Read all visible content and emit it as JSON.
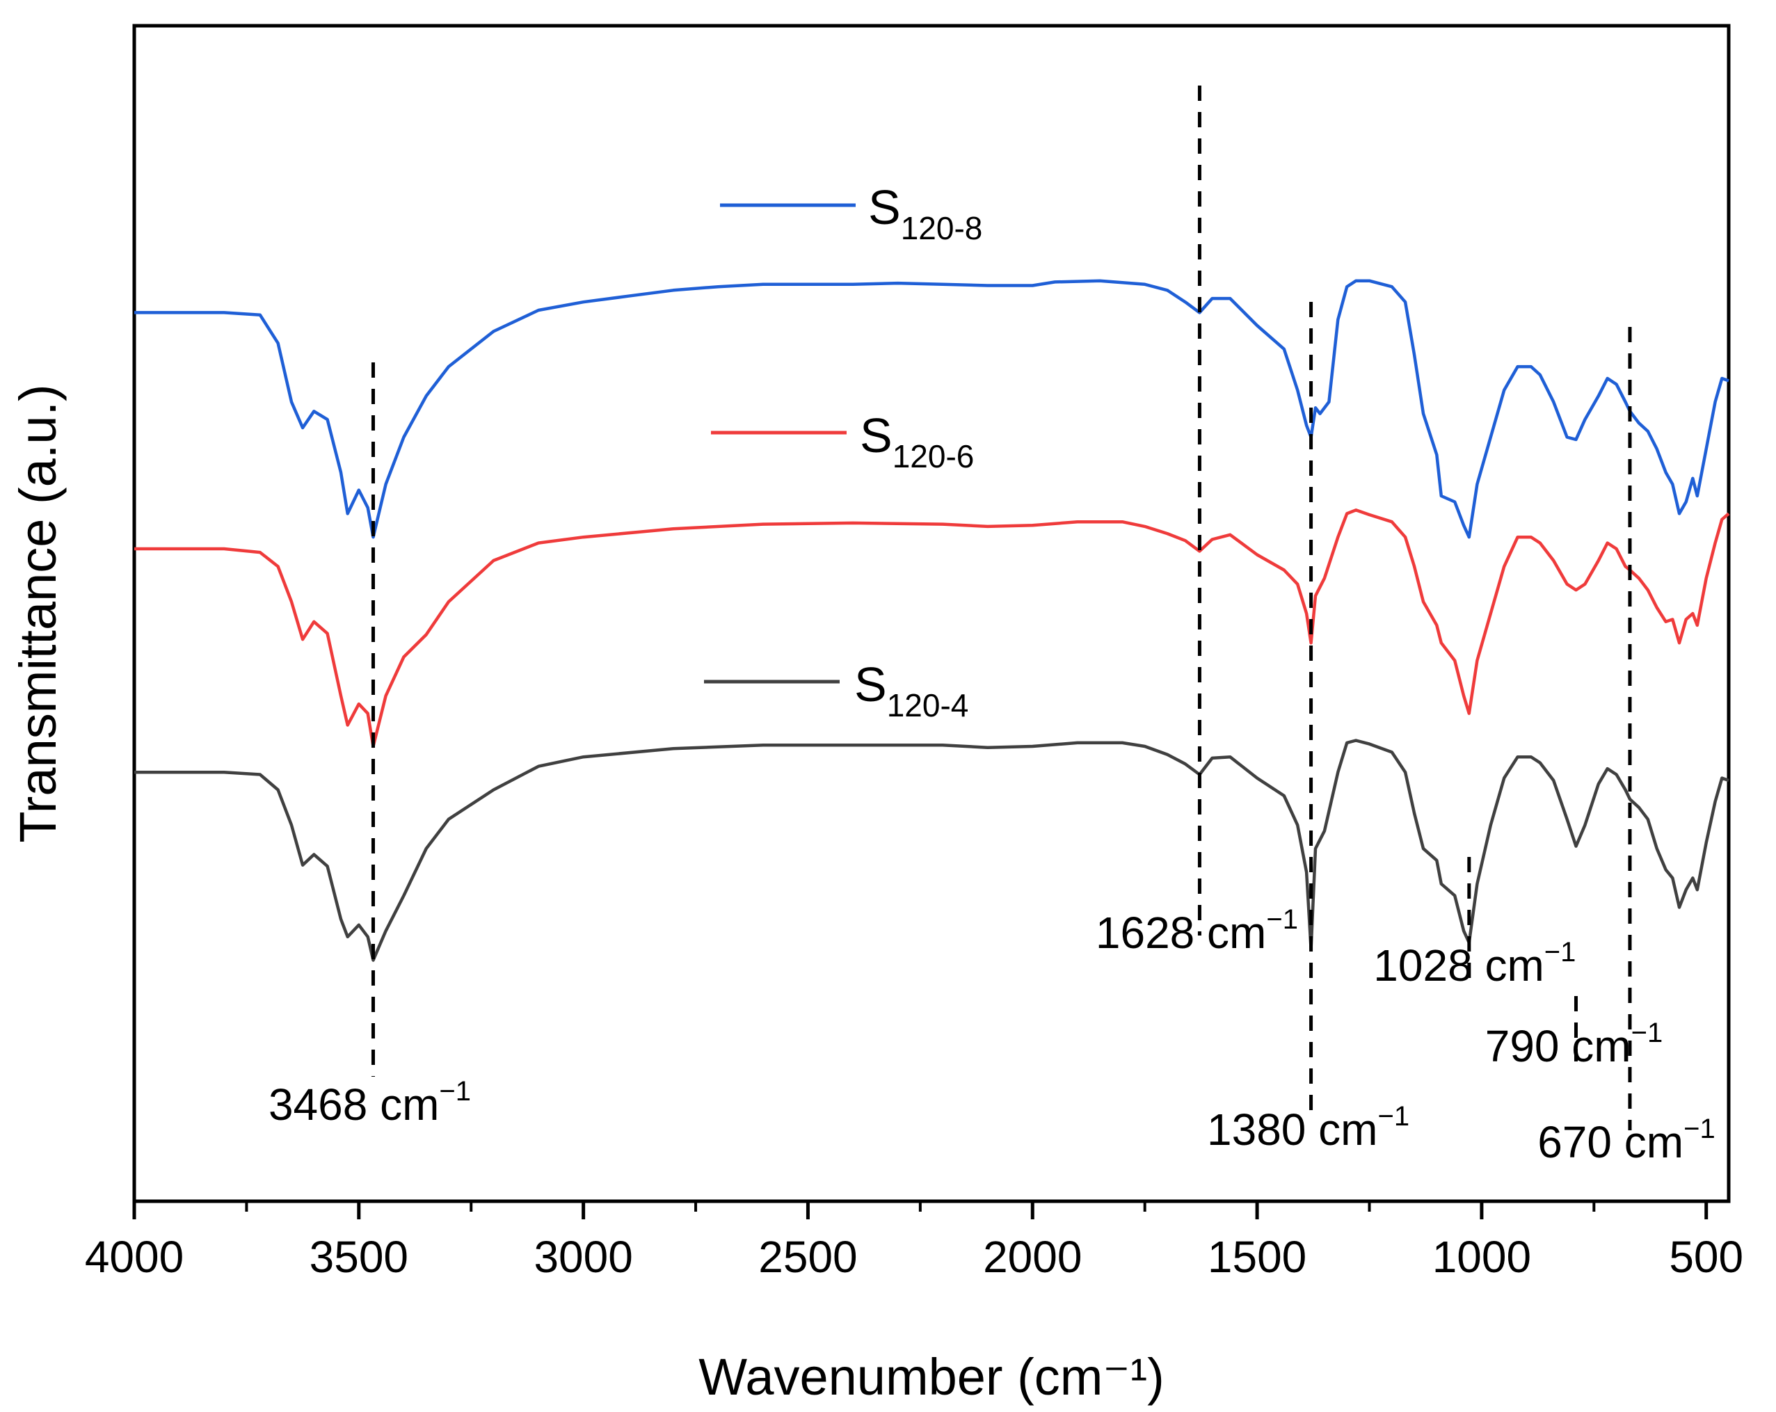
{
  "chart_data": {
    "type": "line",
    "title": "",
    "xlabel": "Wavenumber (cm⁻¹)",
    "ylabel": "Transmittance (a.u.)",
    "xlim": [
      4000,
      450
    ],
    "ylim": [
      0,
      100
    ],
    "x_reversed": true,
    "x_ticks": [
      4000,
      3500,
      3000,
      2500,
      2000,
      1500,
      1000,
      500
    ],
    "x_tick_labels": [
      "4000",
      "3500",
      "3000",
      "2500",
      "2000",
      "1500",
      "1000",
      "500"
    ],
    "x_minor_ticks": [
      3750,
      3250,
      2750,
      2250,
      1750,
      1250,
      750
    ],
    "y_ticks_shown": false,
    "grid": false,
    "legend_position": "top-center",
    "series": [
      {
        "name": "S120-8",
        "label_main": "S",
        "label_sub": "120-8",
        "color": "#1f5fd6",
        "points": [
          [
            4000,
            75.6
          ],
          [
            3900,
            75.6
          ],
          [
            3800,
            75.6
          ],
          [
            3720,
            75.4
          ],
          [
            3680,
            73
          ],
          [
            3650,
            68
          ],
          [
            3625,
            65.8
          ],
          [
            3600,
            67.2
          ],
          [
            3570,
            66.5
          ],
          [
            3540,
            62
          ],
          [
            3525,
            58.5
          ],
          [
            3500,
            60.5
          ],
          [
            3480,
            59
          ],
          [
            3468,
            56.5
          ],
          [
            3440,
            61
          ],
          [
            3400,
            65
          ],
          [
            3350,
            68.5
          ],
          [
            3300,
            71
          ],
          [
            3200,
            74
          ],
          [
            3100,
            75.8
          ],
          [
            3000,
            76.5
          ],
          [
            2900,
            77
          ],
          [
            2800,
            77.5
          ],
          [
            2700,
            77.8
          ],
          [
            2600,
            78
          ],
          [
            2500,
            78
          ],
          [
            2400,
            78
          ],
          [
            2300,
            78.1
          ],
          [
            2200,
            78
          ],
          [
            2100,
            77.9
          ],
          [
            2000,
            77.9
          ],
          [
            1950,
            78.2
          ],
          [
            1850,
            78.3
          ],
          [
            1750,
            78
          ],
          [
            1700,
            77.5
          ],
          [
            1660,
            76.5
          ],
          [
            1628,
            75.6
          ],
          [
            1600,
            76.8
          ],
          [
            1560,
            76.8
          ],
          [
            1500,
            74.5
          ],
          [
            1440,
            72.5
          ],
          [
            1410,
            69
          ],
          [
            1390,
            66
          ],
          [
            1380,
            65
          ],
          [
            1370,
            67.5
          ],
          [
            1360,
            67
          ],
          [
            1340,
            68
          ],
          [
            1320,
            75
          ],
          [
            1300,
            77.8
          ],
          [
            1280,
            78.3
          ],
          [
            1250,
            78.3
          ],
          [
            1200,
            77.8
          ],
          [
            1170,
            76.5
          ],
          [
            1150,
            72
          ],
          [
            1130,
            67
          ],
          [
            1100,
            63.5
          ],
          [
            1090,
            60
          ],
          [
            1060,
            59.5
          ],
          [
            1040,
            57.5
          ],
          [
            1028,
            56.5
          ],
          [
            1010,
            61
          ],
          [
            980,
            65
          ],
          [
            950,
            69
          ],
          [
            920,
            71
          ],
          [
            890,
            71
          ],
          [
            870,
            70.3
          ],
          [
            840,
            68
          ],
          [
            810,
            65
          ],
          [
            790,
            64.8
          ],
          [
            770,
            66.5
          ],
          [
            740,
            68.5
          ],
          [
            720,
            70
          ],
          [
            700,
            69.5
          ],
          [
            680,
            68
          ],
          [
            670,
            67.2
          ],
          [
            650,
            66.2
          ],
          [
            630,
            65.5
          ],
          [
            610,
            64
          ],
          [
            590,
            62
          ],
          [
            575,
            61
          ],
          [
            560,
            58.5
          ],
          [
            545,
            59.5
          ],
          [
            530,
            61.5
          ],
          [
            520,
            60
          ],
          [
            500,
            64
          ],
          [
            480,
            68
          ],
          [
            465,
            70
          ],
          [
            450,
            69.8
          ]
        ]
      },
      {
        "name": "S120-6",
        "label_main": "S",
        "label_sub": "120-6",
        "color": "#ef3b3b",
        "points": [
          [
            4000,
            55.5
          ],
          [
            3900,
            55.5
          ],
          [
            3800,
            55.5
          ],
          [
            3720,
            55.2
          ],
          [
            3680,
            54
          ],
          [
            3650,
            51
          ],
          [
            3625,
            47.8
          ],
          [
            3600,
            49.3
          ],
          [
            3570,
            48.3
          ],
          [
            3540,
            43
          ],
          [
            3525,
            40.5
          ],
          [
            3500,
            42.3
          ],
          [
            3480,
            41.5
          ],
          [
            3468,
            38.7
          ],
          [
            3440,
            43
          ],
          [
            3400,
            46.3
          ],
          [
            3350,
            48.2
          ],
          [
            3300,
            51
          ],
          [
            3200,
            54.5
          ],
          [
            3100,
            56
          ],
          [
            3000,
            56.5
          ],
          [
            2800,
            57.2
          ],
          [
            2600,
            57.6
          ],
          [
            2400,
            57.7
          ],
          [
            2200,
            57.6
          ],
          [
            2100,
            57.4
          ],
          [
            2000,
            57.5
          ],
          [
            1900,
            57.8
          ],
          [
            1800,
            57.8
          ],
          [
            1750,
            57.4
          ],
          [
            1700,
            56.8
          ],
          [
            1660,
            56.2
          ],
          [
            1628,
            55.3
          ],
          [
            1600,
            56.3
          ],
          [
            1560,
            56.7
          ],
          [
            1500,
            55
          ],
          [
            1440,
            53.7
          ],
          [
            1410,
            52.5
          ],
          [
            1390,
            50
          ],
          [
            1380,
            47.5
          ],
          [
            1370,
            51.5
          ],
          [
            1350,
            53
          ],
          [
            1320,
            56.5
          ],
          [
            1300,
            58.5
          ],
          [
            1280,
            58.8
          ],
          [
            1250,
            58.4
          ],
          [
            1200,
            57.8
          ],
          [
            1170,
            56.5
          ],
          [
            1150,
            54
          ],
          [
            1130,
            51
          ],
          [
            1100,
            49
          ],
          [
            1090,
            47.5
          ],
          [
            1060,
            46
          ],
          [
            1040,
            43
          ],
          [
            1028,
            41.5
          ],
          [
            1010,
            46
          ],
          [
            980,
            50
          ],
          [
            950,
            54
          ],
          [
            920,
            56.5
          ],
          [
            890,
            56.5
          ],
          [
            870,
            56
          ],
          [
            840,
            54.5
          ],
          [
            810,
            52.5
          ],
          [
            790,
            52
          ],
          [
            770,
            52.5
          ],
          [
            740,
            54.5
          ],
          [
            720,
            56
          ],
          [
            700,
            55.5
          ],
          [
            680,
            54
          ],
          [
            670,
            53.7
          ],
          [
            650,
            53
          ],
          [
            630,
            52
          ],
          [
            610,
            50.5
          ],
          [
            590,
            49.3
          ],
          [
            575,
            49.5
          ],
          [
            560,
            47.5
          ],
          [
            545,
            49.5
          ],
          [
            530,
            50
          ],
          [
            520,
            49
          ],
          [
            500,
            53
          ],
          [
            480,
            56
          ],
          [
            465,
            58
          ],
          [
            450,
            58.5
          ]
        ]
      },
      {
        "name": "S120-4",
        "label_main": "S",
        "label_sub": "120-4",
        "color": "#404040",
        "points": [
          [
            4000,
            36.5
          ],
          [
            3900,
            36.5
          ],
          [
            3800,
            36.5
          ],
          [
            3720,
            36.3
          ],
          [
            3680,
            35
          ],
          [
            3650,
            32
          ],
          [
            3625,
            28.6
          ],
          [
            3600,
            29.5
          ],
          [
            3570,
            28.5
          ],
          [
            3540,
            24
          ],
          [
            3525,
            22.5
          ],
          [
            3500,
            23.5
          ],
          [
            3480,
            22.5
          ],
          [
            3468,
            20.5
          ],
          [
            3440,
            23
          ],
          [
            3400,
            26
          ],
          [
            3350,
            30
          ],
          [
            3300,
            32.5
          ],
          [
            3200,
            35
          ],
          [
            3100,
            37
          ],
          [
            3000,
            37.8
          ],
          [
            2800,
            38.5
          ],
          [
            2600,
            38.8
          ],
          [
            2400,
            38.8
          ],
          [
            2200,
            38.8
          ],
          [
            2100,
            38.6
          ],
          [
            2000,
            38.7
          ],
          [
            1900,
            39
          ],
          [
            1800,
            39
          ],
          [
            1750,
            38.7
          ],
          [
            1700,
            38
          ],
          [
            1660,
            37.2
          ],
          [
            1628,
            36.3
          ],
          [
            1600,
            37.7
          ],
          [
            1560,
            37.8
          ],
          [
            1500,
            36
          ],
          [
            1440,
            34.5
          ],
          [
            1410,
            32
          ],
          [
            1390,
            28
          ],
          [
            1380,
            21.5
          ],
          [
            1370,
            30
          ],
          [
            1350,
            31.5
          ],
          [
            1320,
            36.5
          ],
          [
            1300,
            39
          ],
          [
            1280,
            39.2
          ],
          [
            1250,
            38.9
          ],
          [
            1200,
            38.2
          ],
          [
            1170,
            36.5
          ],
          [
            1150,
            33
          ],
          [
            1130,
            30
          ],
          [
            1100,
            29
          ],
          [
            1090,
            27
          ],
          [
            1060,
            26
          ],
          [
            1040,
            23
          ],
          [
            1028,
            22
          ],
          [
            1010,
            27
          ],
          [
            980,
            32
          ],
          [
            950,
            36
          ],
          [
            920,
            37.8
          ],
          [
            890,
            37.8
          ],
          [
            870,
            37.3
          ],
          [
            840,
            35.8
          ],
          [
            810,
            32.5
          ],
          [
            790,
            30.2
          ],
          [
            770,
            32
          ],
          [
            740,
            35.5
          ],
          [
            720,
            36.8
          ],
          [
            700,
            36.3
          ],
          [
            680,
            35
          ],
          [
            670,
            34.2
          ],
          [
            650,
            33.5
          ],
          [
            630,
            32.5
          ],
          [
            610,
            30
          ],
          [
            590,
            28.2
          ],
          [
            575,
            27.5
          ],
          [
            560,
            25
          ],
          [
            545,
            26.5
          ],
          [
            530,
            27.5
          ],
          [
            520,
            26.5
          ],
          [
            500,
            30.5
          ],
          [
            480,
            34
          ],
          [
            465,
            36
          ],
          [
            450,
            35.8
          ]
        ]
      }
    ],
    "annotations": [
      {
        "x": 3468,
        "label": "3468 cm",
        "sup": "−1"
      },
      {
        "x": 1628,
        "label": "1628 cm",
        "sup": "−1"
      },
      {
        "x": 1380,
        "label": "1380 cm",
        "sup": "−1"
      },
      {
        "x": 1028,
        "label": "1028 cm",
        "sup": "−1"
      },
      {
        "x": 790,
        "label": "790 cm",
        "sup": "−1"
      },
      {
        "x": 670,
        "label": "670 cm",
        "sup": "−1"
      }
    ]
  }
}
